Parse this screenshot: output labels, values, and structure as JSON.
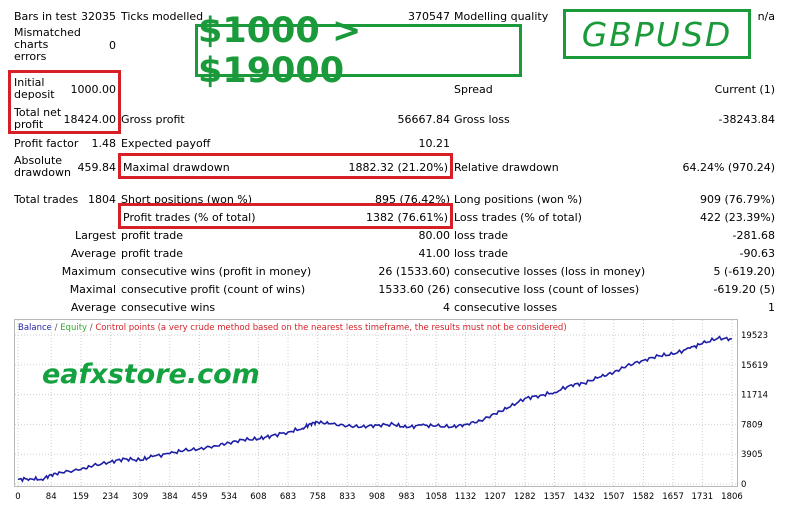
{
  "report": {
    "bars_in_test_label": "Bars in test",
    "bars_in_test_value": "32035",
    "ticks_modelled_label": "Ticks modelled",
    "ticks_modelled_value": "370547",
    "modelling_quality_label": "Modelling quality",
    "modelling_quality_value": "n/a",
    "mismatched_label": "Mismatched charts errors",
    "mismatched_value": "0",
    "initial_deposit_label": "Initial deposit",
    "initial_deposit_value": "1000.00",
    "spread_label": "Spread",
    "spread_value": "Current (1)",
    "total_net_profit_label": "Total net profit",
    "total_net_profit_value": "18424.00",
    "gross_profit_label": "Gross profit",
    "gross_profit_value": "56667.84",
    "gross_loss_label": "Gross loss",
    "gross_loss_value": "-38243.84",
    "profit_factor_label": "Profit factor",
    "profit_factor_value": "1.48",
    "expected_payoff_label": "Expected payoff",
    "expected_payoff_value": "10.21",
    "absolute_drawdown_label": "Absolute drawdown",
    "absolute_drawdown_value": "459.84",
    "maximal_drawdown_label": "Maximal drawdown",
    "maximal_drawdown_value": "1882.32 (21.20%)",
    "relative_drawdown_label": "Relative drawdown",
    "relative_drawdown_value": "64.24% (970.24)",
    "total_trades_label": "Total trades",
    "total_trades_value": "1804",
    "short_positions_label": "Short positions (won %)",
    "short_positions_value": "895 (76.42%)",
    "long_positions_label": "Long positions (won %)",
    "long_positions_value": "909 (76.79%)",
    "profit_trades_label": "Profit trades (% of total)",
    "profit_trades_value": "1382 (76.61%)",
    "loss_trades_label": "Loss trades (% of total)",
    "loss_trades_value": "422 (23.39%)",
    "largest_label": "Largest",
    "largest_profit_label": "profit trade",
    "largest_profit_value": "80.00",
    "largest_loss_label": "loss trade",
    "largest_loss_value": "-281.68",
    "average_label": "Average",
    "average_profit_label": "profit trade",
    "average_profit_value": "41.00",
    "average_loss_label": "loss trade",
    "average_loss_value": "-90.63",
    "maximum_label": "Maximum",
    "max_wins_label": "consecutive wins (profit in money)",
    "max_wins_value": "26 (1533.60)",
    "max_losses_label": "consecutive losses (loss in money)",
    "max_losses_value": "5 (-619.20)",
    "maximal_label": "Maximal",
    "maximal_profit_label": "consecutive profit (count of wins)",
    "maximal_profit_value": "1533.60 (26)",
    "maximal_loss_label": "consecutive loss (count of losses)",
    "maximal_loss_value": "-619.20 (5)",
    "average2_label": "Average",
    "avg_wins_label": "consecutive wins",
    "avg_wins_value": "4",
    "avg_losses_label": "consecutive losses",
    "avg_losses_value": "1"
  },
  "overlays": {
    "headline": "$1000 > $19000",
    "symbol": "GBPUSD",
    "watermark": "eafxstore.com"
  },
  "legend": {
    "balance": "Balance",
    "sep1": " / ",
    "equity": "Equity",
    "sep2": " / ",
    "control": "Control points (a very crude method based on the nearest less timeframe, the results must not be considered)"
  },
  "colors": {
    "red_box": "#d61f26",
    "green_overlay": "#1a9a3a",
    "balance_line": "#1f1fa6",
    "equity_legend": "#2eaa2e",
    "control_legend": "#d61f26"
  },
  "chart_data": {
    "type": "line",
    "series": [
      {
        "name": "Balance",
        "x": [
          0,
          30,
          60,
          84,
          110,
          159,
          190,
          234,
          270,
          309,
          340,
          384,
          420,
          459,
          500,
          534,
          570,
          608,
          640,
          683,
          720,
          740,
          758,
          790,
          833,
          870,
          908,
          950,
          983,
          1020,
          1058,
          1100,
          1132,
          1170,
          1207,
          1240,
          1282,
          1320,
          1357,
          1400,
          1432,
          1470,
          1507,
          1540,
          1582,
          1620,
          1657,
          1700,
          1731,
          1770,
          1806
        ],
        "y": [
          600,
          700,
          600,
          1200,
          1500,
          1900,
          2400,
          2900,
          3300,
          3100,
          3600,
          4000,
          4400,
          4600,
          5000,
          5400,
          5800,
          5900,
          6300,
          6800,
          7300,
          7900,
          8100,
          7900,
          7600,
          7500,
          7700,
          7800,
          7400,
          7700,
          7600,
          7500,
          7800,
          8300,
          9200,
          10000,
          11200,
          11600,
          12000,
          13000,
          13200,
          14000,
          14600,
          15500,
          16200,
          16800,
          17000,
          17800,
          18400,
          19100,
          19000
        ]
      }
    ],
    "xticks": [
      0,
      84,
      159,
      234,
      309,
      384,
      459,
      534,
      608,
      683,
      758,
      833,
      908,
      983,
      1058,
      1132,
      1207,
      1282,
      1357,
      1432,
      1507,
      1582,
      1657,
      1731,
      1806
    ],
    "yticks": [
      0,
      3905,
      7809,
      11714,
      15619,
      19523
    ],
    "xlim": [
      0,
      1806
    ],
    "ylim": [
      0,
      19523
    ]
  }
}
